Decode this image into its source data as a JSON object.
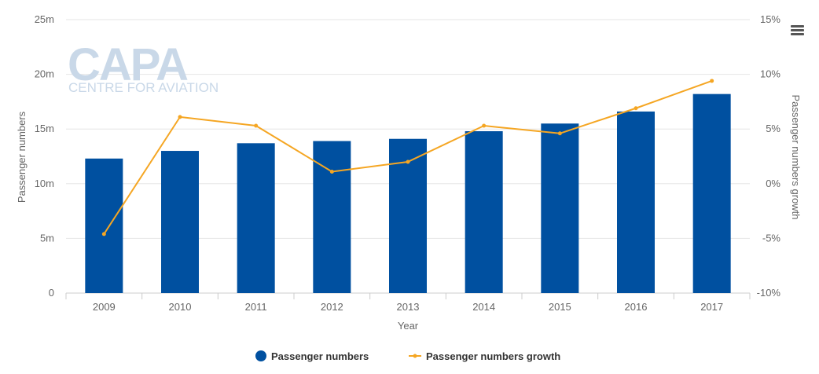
{
  "watermark": {
    "brand": "CAPA",
    "tagline": "CENTRE FOR AVIATION"
  },
  "menu": {
    "icon": "hamburger-menu-icon"
  },
  "chart_data": {
    "type": "bar",
    "categories": [
      "2009",
      "2010",
      "2011",
      "2012",
      "2013",
      "2014",
      "2015",
      "2016",
      "2017"
    ],
    "series": [
      {
        "name": "Passenger numbers",
        "type": "bar",
        "axis": "left",
        "color": "#0050a0",
        "values": [
          12.3,
          13.0,
          13.7,
          13.9,
          14.1,
          14.8,
          15.5,
          16.6,
          18.2
        ]
      },
      {
        "name": "Passenger numbers growth",
        "type": "line",
        "axis": "right",
        "color": "#f5a623",
        "values": [
          -4.6,
          6.1,
          5.3,
          1.1,
          2.0,
          5.3,
          4.6,
          6.9,
          9.4
        ]
      }
    ],
    "xlabel": "Year",
    "ylabel": "Passenger numbers",
    "y2label": "Passenger numbers growth",
    "ylim": [
      0,
      25
    ],
    "y2lim": [
      -10,
      15
    ],
    "yticks": [
      "0",
      "5m",
      "10m",
      "15m",
      "20m",
      "25m"
    ],
    "y2ticks": [
      "-10%",
      "-5%",
      "0%",
      "5%",
      "10%",
      "15%"
    ],
    "grid": true,
    "legend": "bottom-center"
  }
}
